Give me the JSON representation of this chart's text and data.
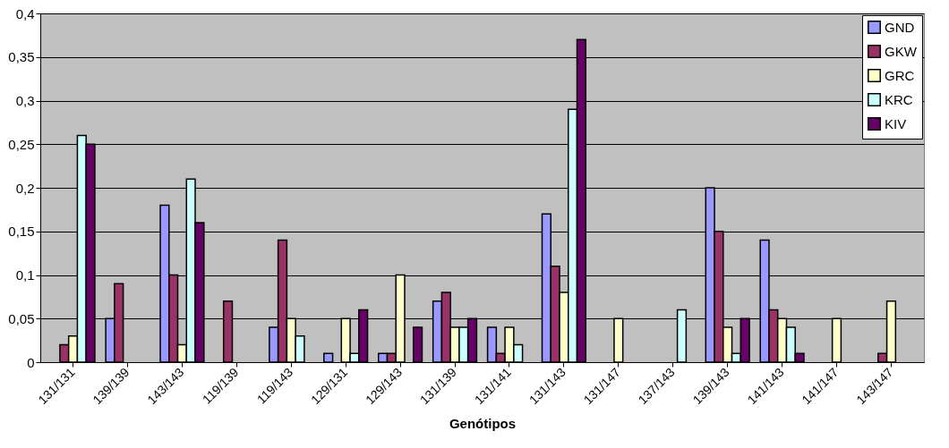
{
  "chart_data": {
    "type": "bar",
    "xlabel": "Genótipos",
    "categories": [
      "131/131",
      "139/139",
      "143/143",
      "119/139",
      "119/143",
      "129/131",
      "129/143",
      "131/139",
      "131/141",
      "131/143",
      "131/147",
      "137/143",
      "139/143",
      "141/143",
      "141/147",
      "143/147"
    ],
    "series": [
      {
        "name": "GND",
        "color": "#9999ff",
        "values": [
          null,
          0.05,
          0.18,
          null,
          0.04,
          0.01,
          0.01,
          0.07,
          0.04,
          0.17,
          null,
          null,
          0.2,
          0.14,
          null,
          null
        ]
      },
      {
        "name": "GKW",
        "color": "#993366",
        "values": [
          0.02,
          0.09,
          0.1,
          0.07,
          0.14,
          null,
          0.01,
          0.08,
          0.01,
          0.11,
          null,
          null,
          0.15,
          0.06,
          null,
          0.01
        ]
      },
      {
        "name": "GRC",
        "color": "#ffffcc",
        "values": [
          0.03,
          null,
          0.02,
          null,
          0.05,
          0.05,
          0.1,
          0.04,
          0.04,
          0.08,
          0.05,
          null,
          0.04,
          0.05,
          0.05,
          0.07
        ]
      },
      {
        "name": "KRC",
        "color": "#ccffff",
        "values": [
          0.26,
          null,
          0.21,
          null,
          0.03,
          0.01,
          null,
          0.04,
          0.02,
          0.29,
          null,
          0.06,
          0.01,
          0.04,
          null,
          null
        ]
      },
      {
        "name": "KIV",
        "color": "#660066",
        "values": [
          0.25,
          null,
          0.16,
          null,
          null,
          0.06,
          0.04,
          0.05,
          null,
          0.37,
          null,
          null,
          0.05,
          0.01,
          null,
          null
        ]
      }
    ],
    "ylim": [
      0,
      0.4
    ],
    "yticks": [
      0,
      {
        "value": 0.05,
        "label": "0,05"
      },
      {
        "value": 0.1,
        "label": "0,1"
      },
      {
        "value": 0.15,
        "label": "0,15"
      },
      {
        "value": 0.2,
        "label": "0,2"
      },
      {
        "value": 0.25,
        "label": "0,25"
      },
      {
        "value": 0.3,
        "label": "0,3"
      },
      {
        "value": 0.35,
        "label": "0,35"
      },
      {
        "value": 0.4,
        "label": "0,4"
      }
    ],
    "grid": "y",
    "legend": "top right"
  }
}
